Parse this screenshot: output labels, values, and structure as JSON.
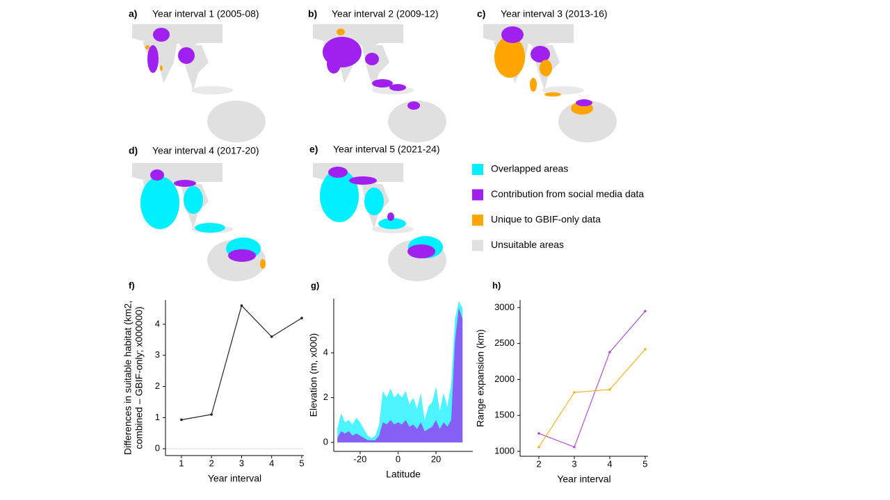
{
  "maps": [
    {
      "label": "a)",
      "title": "Year interval 1 (2005-08)"
    },
    {
      "label": "b)",
      "title": "Year interval 2 (2009-12)"
    },
    {
      "label": "c)",
      "title": "Year interval 3 (2013-16)"
    },
    {
      "label": "d)",
      "title": "Year interval 4 (2017-20)"
    },
    {
      "label": "e)",
      "title": "Year interval 5 (2021-24)"
    }
  ],
  "legend": [
    {
      "label": "Overlapped areas",
      "color": "#00f0ff"
    },
    {
      "label": "Contribution  from social media data",
      "color": "#a020f0"
    },
    {
      "label": "Unique  to GBIF-only data",
      "color": "#ffa500"
    },
    {
      "label": "Unsuitable areas",
      "color": "#e0e0e0"
    }
  ],
  "chart_data": [
    {
      "type": "line",
      "label": "f)",
      "xlabel": "Year interval",
      "ylabel": [
        "Differences in suitable habitat (km2,",
        "combined – GBIF-only; x000000)"
      ],
      "x": [
        1,
        2,
        3,
        4,
        5
      ],
      "series": [
        {
          "color": "#222222",
          "values": [
            0.93,
            1.1,
            4.6,
            3.6,
            4.2
          ]
        }
      ],
      "xlim": [
        0.47,
        5.07
      ],
      "ylim": [
        -0.22,
        4.78
      ],
      "xticks": [
        1,
        2,
        3,
        4,
        5
      ],
      "yticks": [
        0,
        1,
        2,
        3,
        4
      ],
      "zero_line": true
    },
    {
      "type": "area",
      "label": "g)",
      "xlabel": "Latitude",
      "ylabel": [
        "Elevation (m, x000)"
      ],
      "x": [
        -32,
        -30,
        -28,
        -26,
        -24,
        -22,
        -20,
        -18,
        -16,
        -14,
        -12,
        -10,
        -8,
        -6,
        -4,
        -2,
        0,
        2,
        4,
        6,
        8,
        10,
        12,
        14,
        16,
        18,
        20,
        22,
        24,
        26,
        28,
        30,
        32,
        34
      ],
      "series": [
        {
          "color": "#00f0ff",
          "values": [
            0.6,
            1.3,
            0.9,
            1.0,
            0.8,
            1.1,
            0.9,
            0.6,
            0.3,
            0.2,
            0.3,
            0.8,
            2.3,
            2.0,
            2.4,
            2.0,
            2.2,
            2.0,
            2.3,
            1.7,
            2.0,
            1.5,
            2.2,
            1.0,
            1.6,
            1.8,
            2.5,
            1.4,
            2.2,
            1.6,
            2.6,
            5.5,
            6.3,
            6.0
          ]
        },
        {
          "color": "#a020f0",
          "values": [
            0.2,
            0.5,
            0.4,
            0.5,
            0.3,
            0.4,
            0.3,
            0.2,
            0.1,
            0.1,
            0.1,
            0.3,
            0.9,
            0.8,
            1.0,
            0.8,
            0.9,
            0.8,
            1.0,
            0.7,
            0.8,
            0.6,
            0.9,
            0.5,
            0.6,
            0.7,
            1.0,
            0.6,
            0.9,
            0.7,
            1.0,
            4.5,
            6.0,
            5.5
          ]
        }
      ],
      "xlim": [
        -33.9,
        39.4
      ],
      "ylim": [
        -0.4,
        6.42
      ],
      "xticks": [
        -20,
        0,
        20
      ],
      "yticks": [
        0,
        2,
        4
      ]
    },
    {
      "type": "line",
      "label": "h)",
      "xlabel": "Year interval",
      "ylabel": [
        "Range expansion (km)"
      ],
      "x": [
        2,
        3,
        4,
        5
      ],
      "series": [
        {
          "color": "#b04fd8",
          "values": [
            1250,
            1060,
            2380,
            2950
          ]
        },
        {
          "color": "#f5b324",
          "values": [
            1060,
            1820,
            1860,
            2420
          ]
        }
      ],
      "xlim": [
        1.47,
        5.08
      ],
      "ylim": [
        932,
        3105
      ],
      "xticks": [
        2,
        3,
        4,
        5
      ],
      "yticks": [
        1000,
        1500,
        2000,
        2500,
        3000
      ]
    }
  ]
}
